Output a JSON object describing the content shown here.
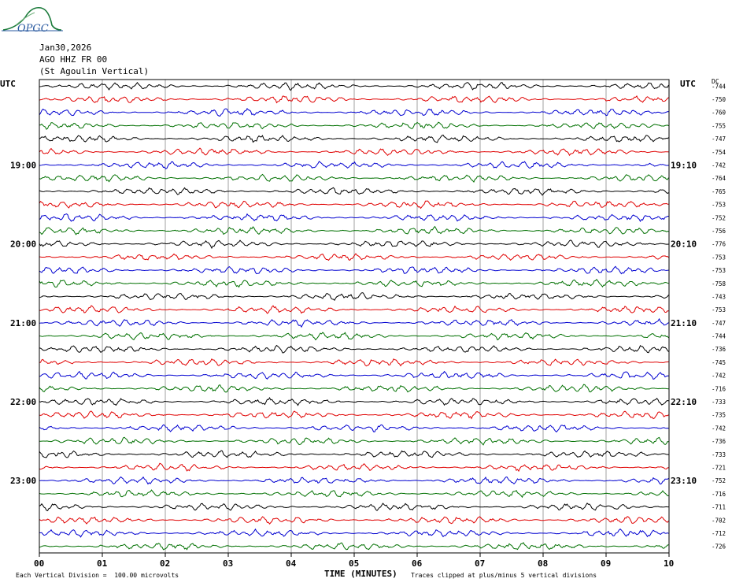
{
  "logo": {
    "text": "OPGC",
    "color": "#1a7a3a"
  },
  "header": {
    "date": "Jan30,2026",
    "station": "AGO HHZ FR 00",
    "location": "(St Agoulin Vertical)"
  },
  "left_axis_label": "UTC",
  "right_axis_label": "UTC",
  "dc_label": "DC",
  "x_axis_title": "TIME (MINUTES)",
  "footer": {
    "division": "Each Vertical Division =  100.00 microvolts",
    "clip": "Traces clipped at plus/minus 5 vertical divisions"
  },
  "chart_data": {
    "type": "line",
    "title": "",
    "xlabel": "TIME (MINUTES)",
    "x_ticks": [
      "00",
      "01",
      "02",
      "03",
      "04",
      "05",
      "06",
      "07",
      "08",
      "09",
      "10"
    ],
    "xlim": [
      0,
      10
    ],
    "grid": true,
    "trace_colors": [
      "#000000",
      "#e00000",
      "#0000d0",
      "#007000"
    ],
    "left_time_labels": [
      {
        "row": 6,
        "label": "19:00"
      },
      {
        "row": 12,
        "label": "20:00"
      },
      {
        "row": 18,
        "label": "21:00"
      },
      {
        "row": 24,
        "label": "22:00"
      },
      {
        "row": 30,
        "label": "23:00"
      }
    ],
    "right_time_labels": [
      {
        "row": 6,
        "label": "19:10"
      },
      {
        "row": 12,
        "label": "20:10"
      },
      {
        "row": 18,
        "label": "21:10"
      },
      {
        "row": 24,
        "label": "22:10"
      },
      {
        "row": 30,
        "label": "23:10"
      }
    ],
    "dc_offsets": [
      -744,
      -750,
      -760,
      -755,
      -747,
      -754,
      -742,
      -764,
      -765,
      -753,
      -752,
      -756,
      -776,
      -753,
      -753,
      -758,
      -743,
      -753,
      -747,
      -744,
      -736,
      -745,
      -742,
      -716,
      -733,
      -735,
      -742,
      -736,
      -733,
      -721,
      -752,
      -716,
      -711,
      -702,
      -712,
      -726
    ]
  }
}
